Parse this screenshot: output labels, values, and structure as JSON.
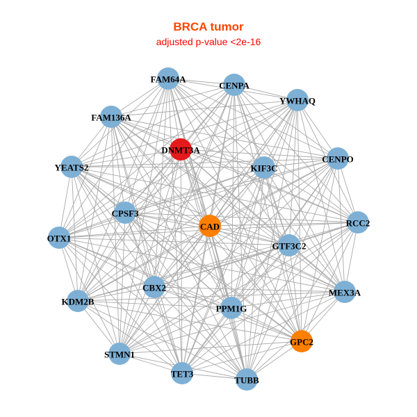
{
  "title": "BRCA tumor",
  "subtitle": "adjusted p-value <2e-16",
  "colors": {
    "default": "#7eb0d5",
    "highlight_red": "#e41a1c",
    "highlight_orange": "#ff7f00",
    "edge": "#a9a9a9"
  },
  "nodes": [
    {
      "label": "FAM64A",
      "color": "#7eb0d5"
    },
    {
      "label": "CENPA",
      "color": "#7eb0d5"
    },
    {
      "label": "YWHAQ",
      "color": "#7eb0d5"
    },
    {
      "label": "FAM136A",
      "color": "#7eb0d5"
    },
    {
      "label": "DNMT3A",
      "color": "#e41a1c"
    },
    {
      "label": "KIF3C",
      "color": "#7eb0d5"
    },
    {
      "label": "CENPO",
      "color": "#7eb0d5"
    },
    {
      "label": "YEATS2",
      "color": "#7eb0d5"
    },
    {
      "label": "CPSF3",
      "color": "#7eb0d5"
    },
    {
      "label": "CAD",
      "color": "#ff7f00"
    },
    {
      "label": "RCC2",
      "color": "#7eb0d5"
    },
    {
      "label": "OTX1",
      "color": "#7eb0d5"
    },
    {
      "label": "GTF3C2",
      "color": "#7eb0d5"
    },
    {
      "label": "MEX3A",
      "color": "#7eb0d5"
    },
    {
      "label": "CBX2",
      "color": "#7eb0d5"
    },
    {
      "label": "KDM2B",
      "color": "#7eb0d5"
    },
    {
      "label": "PPM1G",
      "color": "#7eb0d5"
    },
    {
      "label": "GPC2",
      "color": "#ff7f00"
    },
    {
      "label": "STMN1",
      "color": "#7eb0d5"
    },
    {
      "label": "TET3",
      "color": "#7eb0d5"
    },
    {
      "label": "TUBB",
      "color": "#7eb0d5"
    }
  ]
}
